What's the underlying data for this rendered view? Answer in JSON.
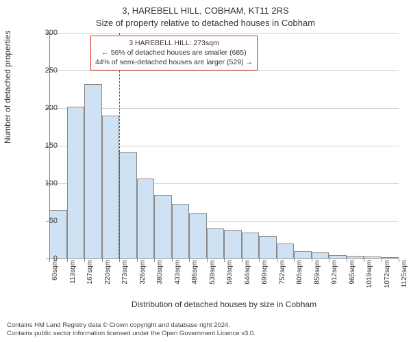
{
  "title_main": "3, HAREBELL HILL, COBHAM, KT11 2RS",
  "title_sub": "Size of property relative to detached houses in Cobham",
  "ylabel": "Number of detached properties",
  "xlabel": "Distribution of detached houses by size in Cobham",
  "footer_line1": "Contains HM Land Registry data © Crown copyright and database right 2024.",
  "footer_line2": "Contains public sector information licensed under the Open Government Licence v3.0.",
  "chart": {
    "type": "histogram",
    "ylim": [
      0,
      300
    ],
    "ytick_step": 50,
    "yticks": [
      0,
      50,
      100,
      150,
      200,
      250,
      300
    ],
    "xtick_labels": [
      "60sqm",
      "113sqm",
      "167sqm",
      "220sqm",
      "273sqm",
      "326sqm",
      "380sqm",
      "433sqm",
      "486sqm",
      "539sqm",
      "593sqm",
      "646sqm",
      "699sqm",
      "752sqm",
      "805sqm",
      "859sqm",
      "912sqm",
      "965sqm",
      "1019sqm",
      "1072sqm",
      "1125sqm"
    ],
    "bar_values": [
      65,
      202,
      232,
      190,
      142,
      106,
      85,
      73,
      60,
      40,
      38,
      35,
      30,
      20,
      10,
      8,
      5,
      4,
      3,
      2
    ],
    "bar_fill_color": "#cfe2f3",
    "bar_border_color": "#888888",
    "grid_color": "#d0d0d0",
    "axis_color": "#888888",
    "background_color": "#ffffff",
    "marker": {
      "x_index": 4,
      "color": "#d62728"
    },
    "annotation": {
      "lines": [
        "3 HAREBELL HILL: 273sqm",
        "← 56% of detached houses are smaller (685)",
        "44% of semi-detached houses are larger (529) →"
      ],
      "border_color": "#d62728"
    }
  },
  "fontsize": {
    "title": 13,
    "axis_label": 12,
    "tick": 11,
    "xtick": 10,
    "anno": 10.5,
    "footer": 9.5
  }
}
